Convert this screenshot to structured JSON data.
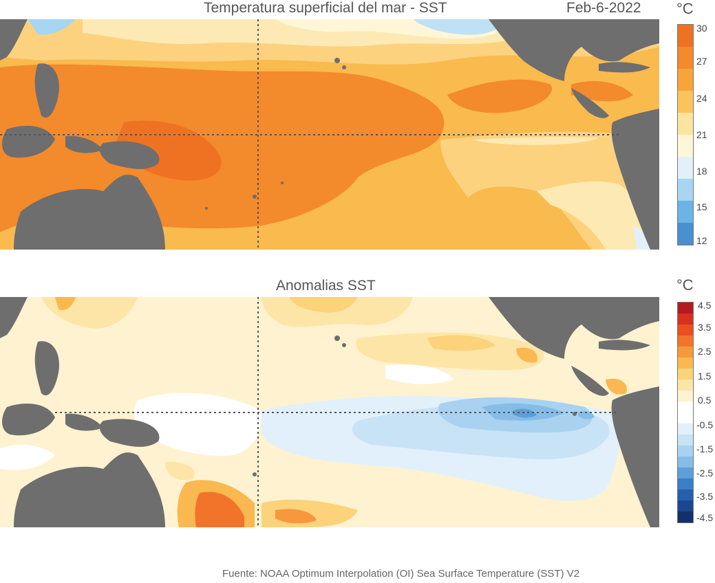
{
  "top_panel": {
    "title": "Temperatura superficial del mar - SST",
    "date": "Feb-6-2022",
    "unit": "°C",
    "ticks": [
      "30",
      "27",
      "24",
      "21",
      "18",
      "15",
      "12"
    ],
    "colorbar": [
      "#ee7222",
      "#f38a2c",
      "#f7a43a",
      "#fbc45a",
      "#fde49e",
      "#fff6d8",
      "#e2f0fa",
      "#a6d6f2",
      "#6cb4e6",
      "#4a8fd0"
    ]
  },
  "bottom_panel": {
    "title": "Anomalias SST",
    "unit": "°C",
    "ticks": [
      "4.5",
      "3.5",
      "2.5",
      "1.5",
      "0.5",
      "-0.5",
      "-1.5",
      "-2.5",
      "-3.5",
      "-4.5"
    ],
    "colorbar": [
      "#b31b20",
      "#d7301f",
      "#ec4e20",
      "#f2742b",
      "#f7983c",
      "#fab850",
      "#fcd27a",
      "#fde5a7",
      "#fff2d0",
      "#ffffff",
      "#ffffff",
      "#e1f0fb",
      "#c8e3f6",
      "#a8d2f0",
      "#86bde8",
      "#5d9fdb",
      "#3a7fc8",
      "#2560ad",
      "#1a4791",
      "#132f6c"
    ]
  },
  "source": "Fuente: NOAA Optimum Interpolation (OI) Sea Surface Temperature (SST) V2"
}
